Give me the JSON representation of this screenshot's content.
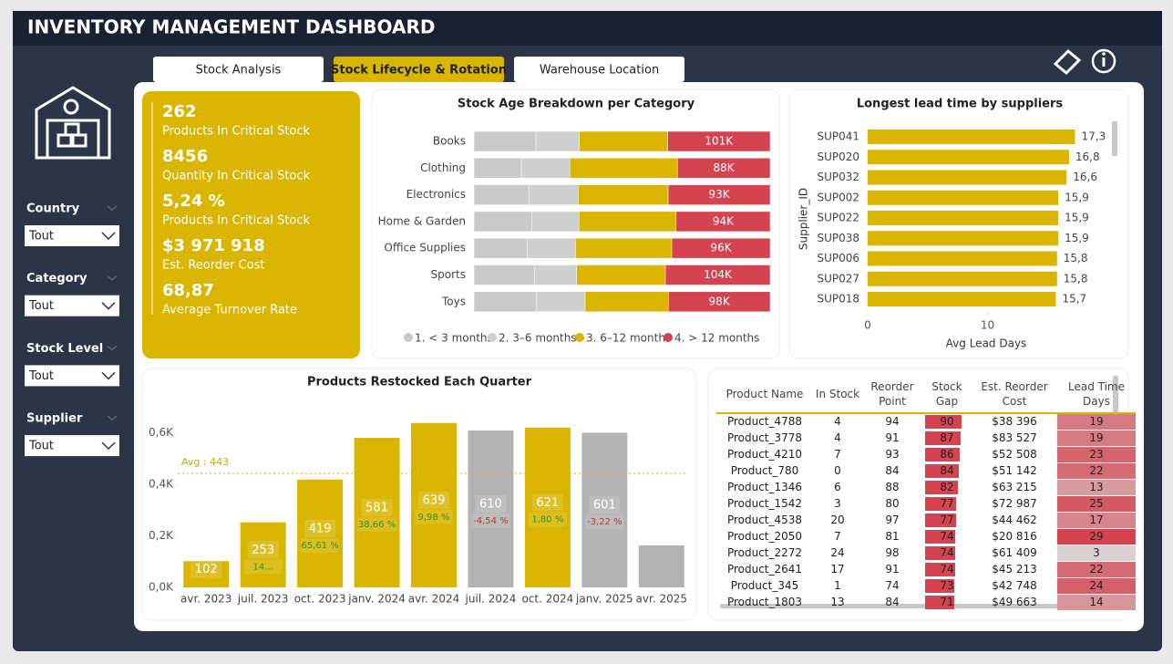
{
  "header": {
    "title": "INVENTORY MANAGEMENT DASHBOARD"
  },
  "tabs": [
    "Stock Analysis",
    "Stock Lifecycle & Rotation",
    "Warehouse Location"
  ],
  "active_tab": 1,
  "filters": [
    {
      "label": "Country",
      "value": "Tout"
    },
    {
      "label": "Category",
      "value": "Tout"
    },
    {
      "label": "Stock Level",
      "value": "Tout"
    },
    {
      "label": "Supplier",
      "value": "Tout"
    }
  ],
  "kpis": [
    {
      "value": "262",
      "label": "Products In Critical Stock"
    },
    {
      "value": "8456",
      "label": "Quantity In Critical Stock"
    },
    {
      "value": "5,24 %",
      "label": "Products In Critical Stock"
    },
    {
      "value": "$3 971 918",
      "label": "Est. Reorder Cost"
    },
    {
      "value": "68,87",
      "label": "Average Turnover Rate"
    }
  ],
  "chart_data": [
    {
      "type": "stacked_bar_100",
      "title": "Stock Age Breakdown per Category",
      "categories": [
        "Books",
        "Clothing",
        "Electronics",
        "Home & Garden",
        "Office Supplies",
        "Sports",
        "Toys"
      ],
      "series": [
        {
          "name": "1. < 3 months",
          "color": "#c9c9c9",
          "values": [
            61,
            45,
            50,
            58,
            52,
            60,
            60
          ]
        },
        {
          "name": "2. 3–6 months",
          "color": "#cfcfcf",
          "values": [
            43,
            46,
            45,
            47,
            47,
            42,
            47
          ]
        },
        {
          "name": "3. 6–12 months",
          "color": "#d9b500",
          "values": [
            87,
            102,
            82,
            97,
            94,
            88,
            80
          ]
        },
        {
          "name": "4. > 12 months",
          "color": "#d4434f",
          "values": [
            101,
            88,
            93,
            94,
            96,
            104,
            98
          ],
          "value_labels": [
            "101K",
            "88K",
            "93K",
            "94K",
            "96K",
            "104K",
            "98K"
          ]
        }
      ],
      "legend": "bottom"
    },
    {
      "type": "hbar",
      "title": "Longest lead time by suppliers",
      "x_label": "Avg Lead Days",
      "y_label": "Supplier_ID",
      "categories": [
        "SUP041",
        "SUP020",
        "SUP032",
        "SUP002",
        "SUP022",
        "SUP038",
        "SUP006",
        "SUP027",
        "SUP018"
      ],
      "values": [
        17.3,
        16.8,
        16.6,
        15.9,
        15.9,
        15.9,
        15.8,
        15.8,
        15.7
      ],
      "value_labels": [
        "17,3",
        "16,8",
        "16,6",
        "15,9",
        "15,9",
        "15,9",
        "15,8",
        "15,8",
        "15,7"
      ],
      "color": "#d9b500",
      "xlim": [
        0,
        20
      ],
      "xticks": [
        0,
        10
      ]
    },
    {
      "type": "bar",
      "title": "Products Restocked Each Quarter",
      "categories": [
        "avr. 2023",
        "juil. 2023",
        "oct. 2023",
        "janv. 2024",
        "avr. 2024",
        "juil. 2024",
        "oct. 2024",
        "janv. 2025",
        "avr. 2025"
      ],
      "values": [
        102,
        253,
        419,
        581,
        639,
        610,
        621,
        601,
        163
      ],
      "value_labels": [
        "102",
        "253",
        "419",
        "581",
        "639",
        "610",
        "621",
        "601",
        null
      ],
      "growth_labels": [
        null,
        "14...",
        "65,61 %",
        "38,66 %",
        "9,98 %",
        "-4,54 %",
        "1,80 %",
        "-3,22 %",
        null
      ],
      "colors": [
        "#d9b500",
        "#d9b500",
        "#d9b500",
        "#d9b500",
        "#d9b500",
        "#b3b3b3",
        "#d9b500",
        "#b3b3b3",
        "#b3b3b3"
      ],
      "average": 443,
      "average_label": "Avg : 443",
      "ylim": [
        0,
        670
      ],
      "yticks": [
        {
          "value": 0,
          "label": "0,0K"
        },
        {
          "value": 200,
          "label": "0,2K"
        },
        {
          "value": 400,
          "label": "0,4K"
        },
        {
          "value": 600,
          "label": "0,6K"
        }
      ]
    }
  ],
  "table": {
    "columns": [
      "Product Name",
      "In Stock",
      "Reorder Point",
      "Stock Gap",
      "Est. Reorder Cost",
      "Lead Time Days"
    ],
    "rows": [
      [
        "Product_4788",
        4,
        94,
        90,
        "$38 396",
        19
      ],
      [
        "Product_3778",
        4,
        91,
        87,
        "$83 527",
        19
      ],
      [
        "Product_4210",
        7,
        93,
        86,
        "$52 508",
        23
      ],
      [
        "Product_780",
        0,
        84,
        84,
        "$51 142",
        22
      ],
      [
        "Product_1346",
        6,
        88,
        82,
        "$63 215",
        13
      ],
      [
        "Product_1542",
        3,
        80,
        77,
        "$72 987",
        25
      ],
      [
        "Product_4538",
        20,
        97,
        77,
        "$44 462",
        17
      ],
      [
        "Product_2050",
        7,
        81,
        74,
        "$20 816",
        29
      ],
      [
        "Product_2272",
        24,
        98,
        74,
        "$61 409",
        3
      ],
      [
        "Product_2641",
        17,
        91,
        74,
        "$45 213",
        22
      ],
      [
        "Product_345",
        1,
        74,
        73,
        "$42 748",
        24
      ],
      [
        "Product_1803",
        13,
        84,
        71,
        "$49 663",
        14
      ]
    ]
  }
}
